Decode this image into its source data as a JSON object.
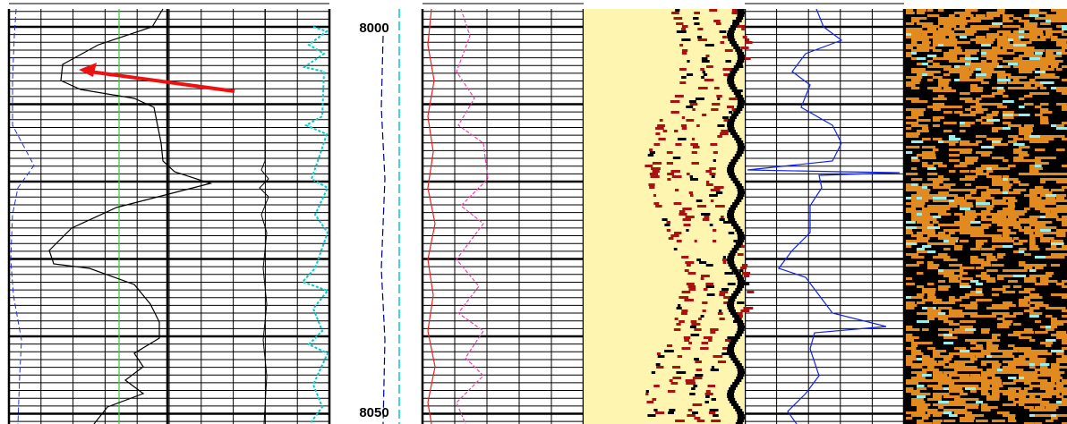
{
  "depth_labels": [
    "8000",
    "8050"
  ]
}
